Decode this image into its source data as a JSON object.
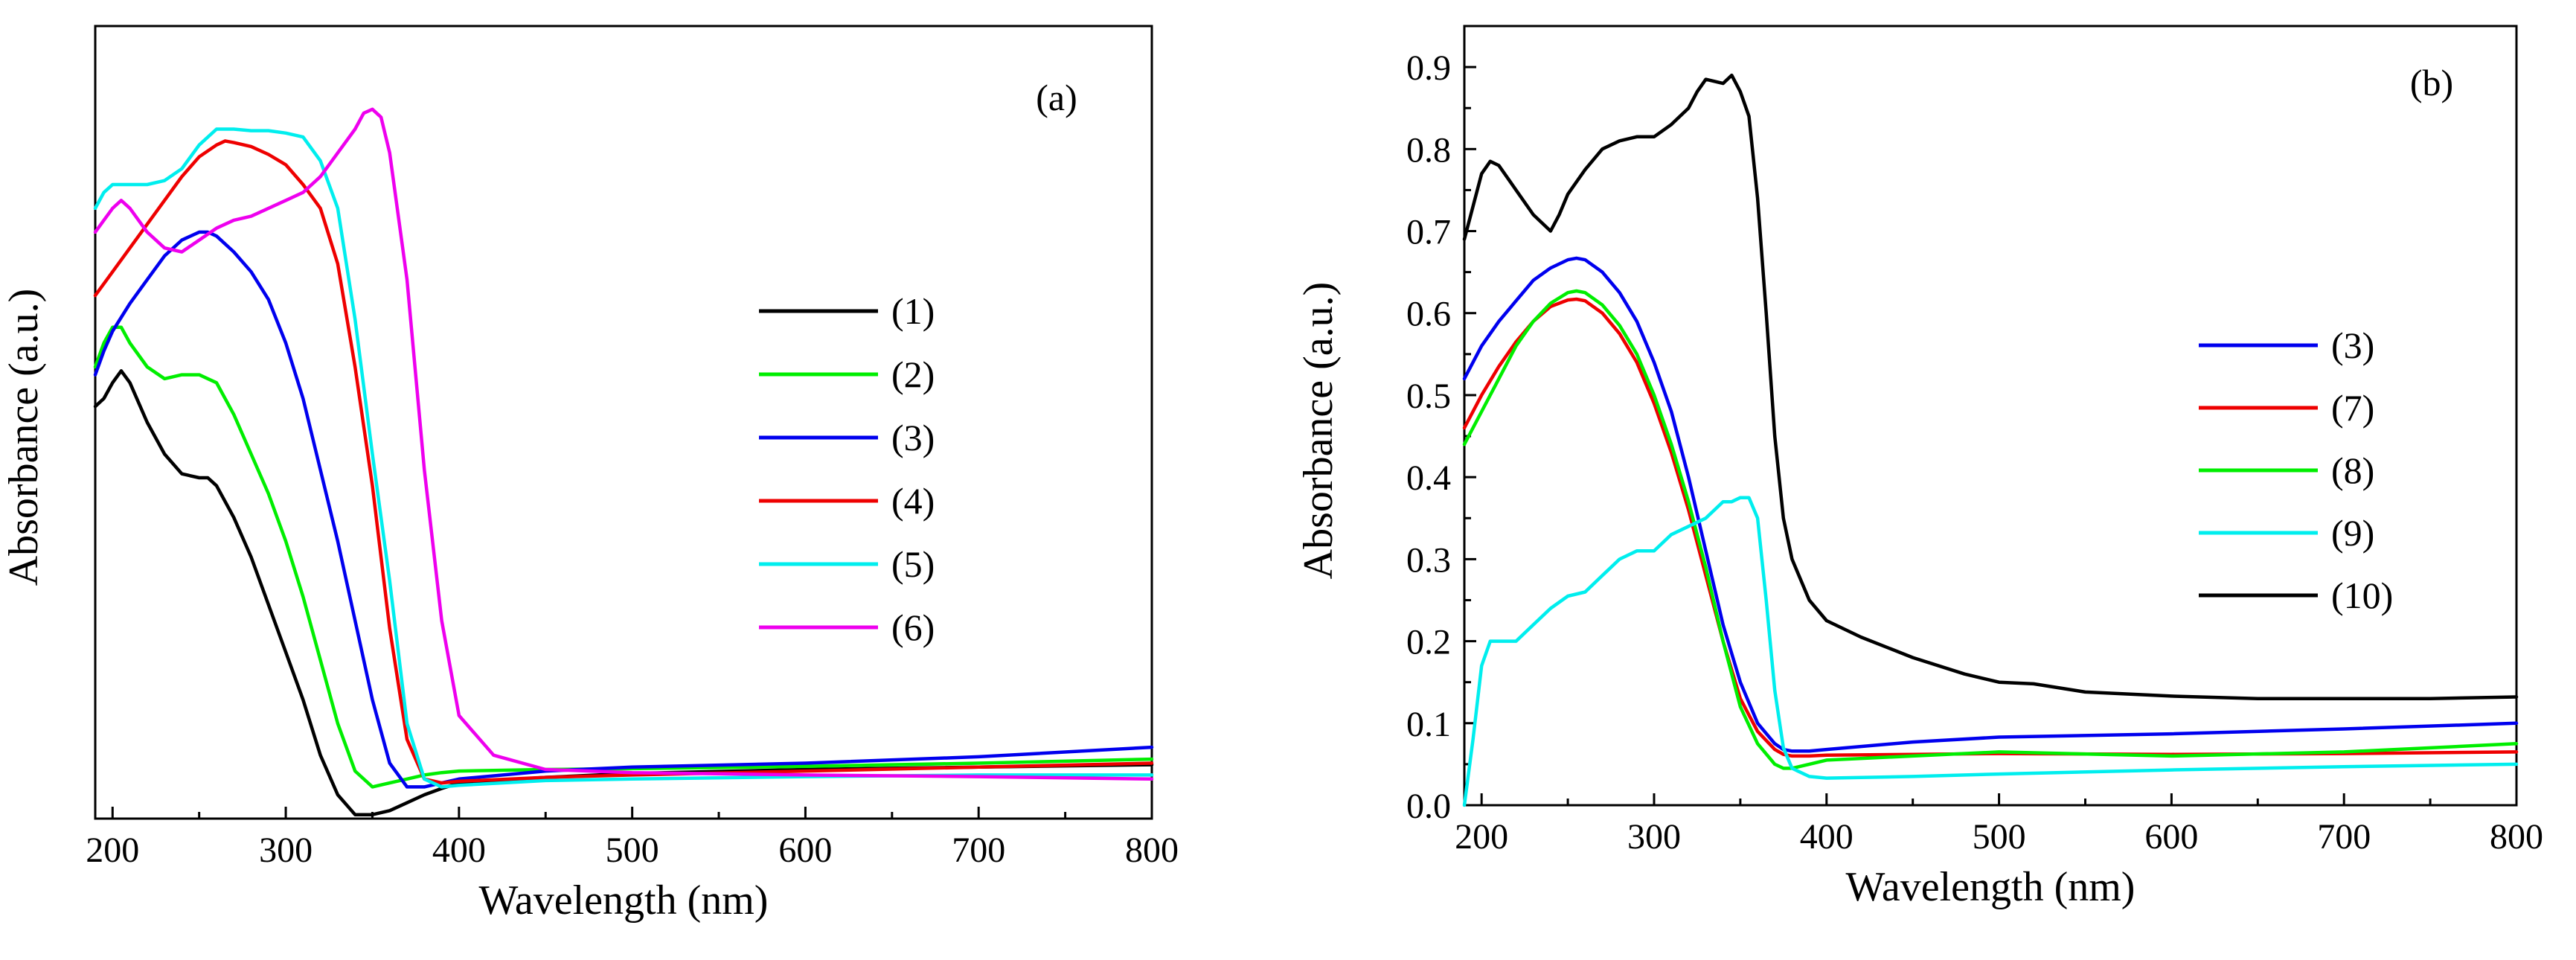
{
  "chart_data": [
    {
      "panel": "(a)",
      "type": "line",
      "title": "",
      "xlabel": "Wavelength (nm)",
      "ylabel": "Absorbance (a.u.)",
      "xlim": [
        190,
        800
      ],
      "ylim": [
        0,
        1
      ],
      "xticks": [
        200,
        300,
        400,
        500,
        600,
        700,
        800
      ],
      "y_tick_labels_shown": false,
      "grid": false,
      "legend_location": "center-right",
      "series": [
        {
          "name": "(1)",
          "color": "#000000",
          "x": [
            190,
            195,
            200,
            205,
            210,
            220,
            230,
            240,
            250,
            255,
            260,
            270,
            280,
            290,
            300,
            310,
            320,
            330,
            340,
            350,
            360,
            370,
            380,
            390,
            400,
            450,
            500,
            600,
            700,
            800
          ],
          "y": [
            0.52,
            0.53,
            0.55,
            0.565,
            0.55,
            0.5,
            0.46,
            0.435,
            0.43,
            0.43,
            0.42,
            0.38,
            0.33,
            0.27,
            0.21,
            0.15,
            0.08,
            0.03,
            0.005,
            0.005,
            0.01,
            0.02,
            0.03,
            0.038,
            0.045,
            0.052,
            0.057,
            0.062,
            0.065,
            0.068
          ]
        },
        {
          "name": "(2)",
          "color": "#00ee00",
          "x": [
            190,
            195,
            200,
            205,
            210,
            220,
            230,
            240,
            250,
            255,
            260,
            270,
            280,
            290,
            300,
            310,
            320,
            330,
            340,
            350,
            360,
            370,
            380,
            390,
            400,
            450,
            500,
            600,
            700,
            800
          ],
          "y": [
            0.57,
            0.6,
            0.62,
            0.62,
            0.6,
            0.57,
            0.555,
            0.56,
            0.56,
            0.555,
            0.55,
            0.51,
            0.46,
            0.41,
            0.35,
            0.28,
            0.2,
            0.12,
            0.06,
            0.04,
            0.045,
            0.05,
            0.055,
            0.058,
            0.06,
            0.062,
            0.063,
            0.066,
            0.07,
            0.075
          ]
        },
        {
          "name": "(3)",
          "color": "#0000ee",
          "x": [
            190,
            195,
            200,
            210,
            220,
            230,
            240,
            250,
            255,
            260,
            270,
            280,
            290,
            300,
            310,
            320,
            330,
            340,
            350,
            360,
            370,
            380,
            390,
            400,
            450,
            500,
            600,
            700,
            800
          ],
          "y": [
            0.56,
            0.59,
            0.615,
            0.65,
            0.68,
            0.71,
            0.73,
            0.74,
            0.74,
            0.735,
            0.715,
            0.69,
            0.655,
            0.6,
            0.53,
            0.44,
            0.35,
            0.25,
            0.15,
            0.07,
            0.04,
            0.04,
            0.045,
            0.05,
            0.06,
            0.065,
            0.07,
            0.078,
            0.09
          ]
        },
        {
          "name": "(4)",
          "color": "#ee0000",
          "x": [
            190,
            200,
            210,
            220,
            230,
            240,
            250,
            260,
            265,
            270,
            280,
            290,
            300,
            310,
            320,
            330,
            340,
            350,
            360,
            370,
            380,
            390,
            400,
            450,
            500,
            600,
            700,
            800
          ],
          "y": [
            0.66,
            0.69,
            0.72,
            0.75,
            0.78,
            0.81,
            0.835,
            0.85,
            0.855,
            0.853,
            0.848,
            0.838,
            0.825,
            0.8,
            0.77,
            0.7,
            0.57,
            0.42,
            0.24,
            0.1,
            0.05,
            0.045,
            0.047,
            0.052,
            0.055,
            0.06,
            0.065,
            0.07
          ]
        },
        {
          "name": "(5)",
          "color": "#00eeee",
          "x": [
            190,
            195,
            200,
            210,
            220,
            230,
            240,
            250,
            260,
            270,
            280,
            290,
            300,
            310,
            320,
            330,
            340,
            350,
            360,
            370,
            380,
            390,
            400,
            450,
            500,
            600,
            700,
            800
          ],
          "y": [
            0.77,
            0.79,
            0.8,
            0.8,
            0.8,
            0.805,
            0.82,
            0.85,
            0.87,
            0.87,
            0.868,
            0.868,
            0.865,
            0.86,
            0.83,
            0.77,
            0.63,
            0.46,
            0.3,
            0.12,
            0.05,
            0.04,
            0.042,
            0.048,
            0.05,
            0.053,
            0.055,
            0.055
          ]
        },
        {
          "name": "(6)",
          "color": "#ee00ee",
          "x": [
            190,
            195,
            200,
            205,
            210,
            220,
            230,
            240,
            250,
            260,
            270,
            280,
            290,
            300,
            310,
            320,
            330,
            340,
            345,
            350,
            355,
            360,
            370,
            380,
            390,
            400,
            420,
            450,
            500,
            600,
            700,
            800
          ],
          "y": [
            0.74,
            0.755,
            0.77,
            0.78,
            0.77,
            0.74,
            0.72,
            0.715,
            0.73,
            0.745,
            0.755,
            0.76,
            0.77,
            0.78,
            0.79,
            0.81,
            0.84,
            0.87,
            0.89,
            0.895,
            0.885,
            0.84,
            0.68,
            0.44,
            0.25,
            0.13,
            0.08,
            0.062,
            0.058,
            0.055,
            0.053,
            0.05
          ]
        }
      ]
    },
    {
      "panel": "(b)",
      "type": "line",
      "title": "",
      "xlabel": "Wavelength (nm)",
      "ylabel": "Absorbance (a.u.)",
      "xlim": [
        190,
        800
      ],
      "ylim": [
        0,
        0.95
      ],
      "xticks": [
        200,
        300,
        400,
        500,
        600,
        700,
        800
      ],
      "yticks": [
        0.0,
        0.1,
        0.2,
        0.3,
        0.4,
        0.5,
        0.6,
        0.7,
        0.8,
        0.9
      ],
      "ytick_labels": [
        "0.0",
        "0.1",
        "0.2",
        "0.3",
        "0.4",
        "0.5",
        "0.6",
        "0.7",
        "0.8",
        "0.9"
      ],
      "grid": false,
      "legend_location": "center-right",
      "series": [
        {
          "name": "(3)",
          "color": "#0000ee",
          "x": [
            190,
            200,
            210,
            220,
            230,
            240,
            250,
            255,
            260,
            270,
            280,
            290,
            300,
            310,
            320,
            330,
            340,
            350,
            360,
            370,
            375,
            380,
            390,
            400,
            450,
            500,
            600,
            700,
            800
          ],
          "y": [
            0.52,
            0.56,
            0.59,
            0.615,
            0.64,
            0.655,
            0.665,
            0.667,
            0.665,
            0.65,
            0.625,
            0.59,
            0.54,
            0.48,
            0.4,
            0.31,
            0.22,
            0.15,
            0.1,
            0.075,
            0.068,
            0.066,
            0.066,
            0.068,
            0.077,
            0.083,
            0.087,
            0.093,
            0.1
          ]
        },
        {
          "name": "(7)",
          "color": "#ee0000",
          "x": [
            190,
            200,
            210,
            220,
            230,
            240,
            250,
            255,
            260,
            270,
            280,
            290,
            300,
            310,
            320,
            330,
            340,
            350,
            360,
            370,
            375,
            380,
            390,
            400,
            450,
            500,
            600,
            700,
            800
          ],
          "y": [
            0.46,
            0.5,
            0.535,
            0.565,
            0.59,
            0.608,
            0.616,
            0.617,
            0.615,
            0.6,
            0.575,
            0.54,
            0.49,
            0.43,
            0.36,
            0.28,
            0.2,
            0.13,
            0.09,
            0.068,
            0.062,
            0.06,
            0.06,
            0.061,
            0.062,
            0.063,
            0.062,
            0.063,
            0.065
          ]
        },
        {
          "name": "(8)",
          "color": "#00ee00",
          "x": [
            190,
            200,
            210,
            220,
            230,
            240,
            250,
            255,
            260,
            270,
            280,
            290,
            300,
            310,
            320,
            330,
            340,
            350,
            360,
            370,
            375,
            380,
            390,
            400,
            450,
            500,
            600,
            700,
            800
          ],
          "y": [
            0.44,
            0.48,
            0.52,
            0.56,
            0.59,
            0.612,
            0.625,
            0.627,
            0.625,
            0.61,
            0.585,
            0.55,
            0.5,
            0.44,
            0.37,
            0.29,
            0.2,
            0.12,
            0.075,
            0.05,
            0.045,
            0.045,
            0.05,
            0.055,
            0.06,
            0.065,
            0.06,
            0.065,
            0.075
          ]
        },
        {
          "name": "(9)",
          "color": "#00eeee",
          "x": [
            190,
            195,
            200,
            205,
            210,
            215,
            220,
            230,
            240,
            250,
            260,
            270,
            280,
            290,
            300,
            310,
            320,
            330,
            340,
            345,
            350,
            355,
            360,
            365,
            370,
            375,
            380,
            390,
            400,
            450,
            500,
            600,
            700,
            800
          ],
          "y": [
            0.0,
            0.08,
            0.17,
            0.2,
            0.2,
            0.2,
            0.2,
            0.22,
            0.24,
            0.255,
            0.26,
            0.28,
            0.3,
            0.31,
            0.31,
            0.33,
            0.34,
            0.35,
            0.37,
            0.37,
            0.375,
            0.375,
            0.35,
            0.25,
            0.14,
            0.07,
            0.045,
            0.035,
            0.033,
            0.035,
            0.038,
            0.043,
            0.047,
            0.05
          ]
        },
        {
          "name": "(10)",
          "color": "#000000",
          "x": [
            190,
            195,
            200,
            205,
            210,
            220,
            230,
            240,
            245,
            250,
            260,
            270,
            280,
            290,
            300,
            310,
            320,
            325,
            330,
            340,
            345,
            350,
            355,
            360,
            365,
            370,
            375,
            380,
            390,
            400,
            420,
            450,
            480,
            500,
            520,
            550,
            600,
            650,
            700,
            750,
            800
          ],
          "y": [
            0.69,
            0.73,
            0.77,
            0.785,
            0.78,
            0.75,
            0.72,
            0.7,
            0.72,
            0.745,
            0.775,
            0.8,
            0.81,
            0.815,
            0.815,
            0.83,
            0.85,
            0.87,
            0.885,
            0.88,
            0.89,
            0.87,
            0.84,
            0.74,
            0.6,
            0.45,
            0.35,
            0.3,
            0.25,
            0.225,
            0.205,
            0.18,
            0.16,
            0.15,
            0.148,
            0.138,
            0.133,
            0.13,
            0.13,
            0.13,
            0.132
          ]
        }
      ]
    }
  ]
}
